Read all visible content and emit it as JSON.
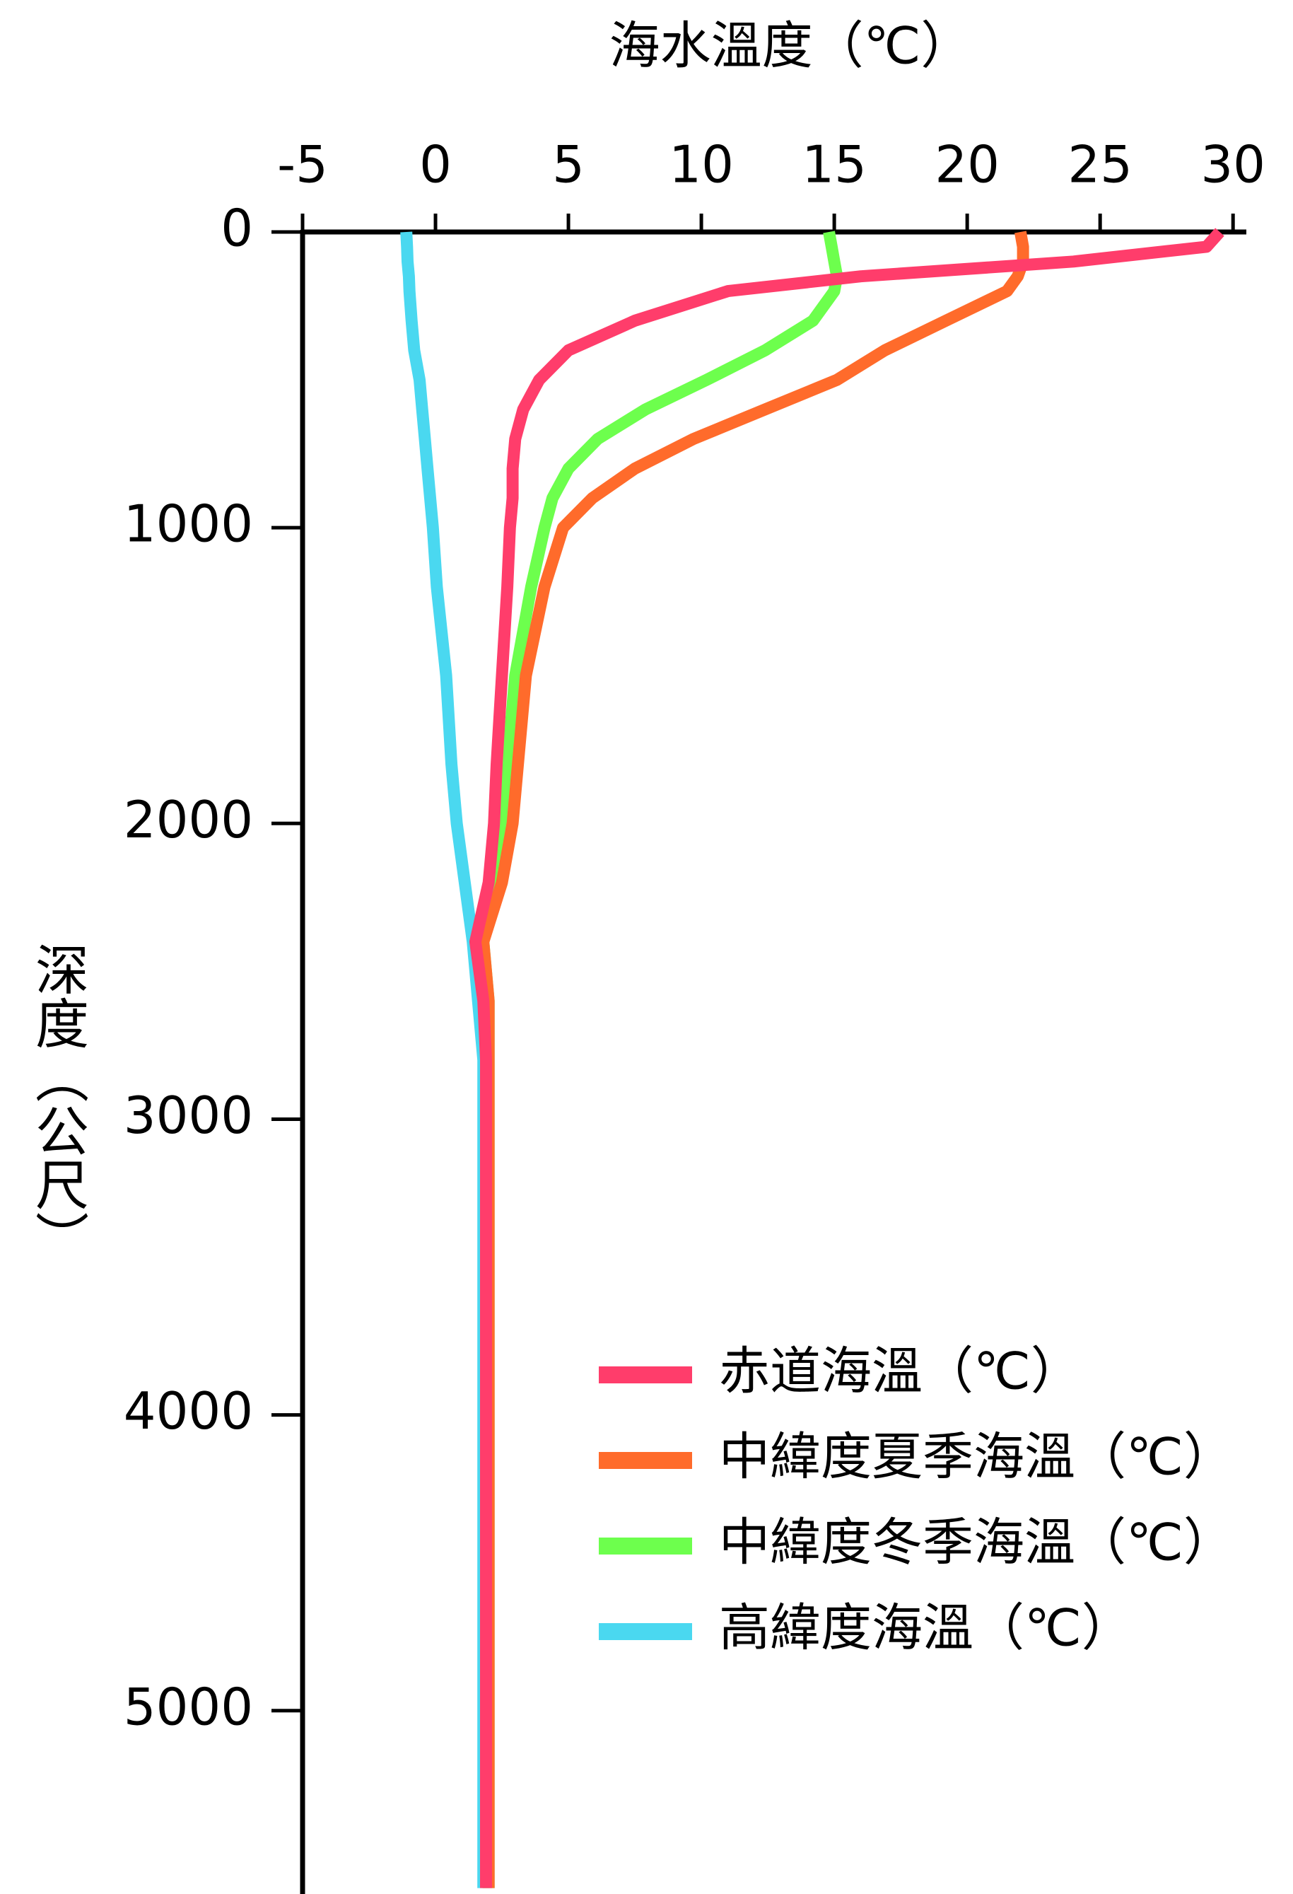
{
  "chart_data": {
    "type": "line",
    "title": "海水溫度（℃）",
    "y_label": "深度（公尺）",
    "y": [
      0,
      50,
      100,
      150,
      200,
      300,
      400,
      500,
      600,
      700,
      800,
      900,
      1000,
      1200,
      1500,
      1800,
      2000,
      2200,
      2400,
      2600,
      2800,
      3000,
      4000,
      5000,
      5600
    ],
    "series": [
      {
        "name": "赤道海溫（℃）",
        "color": "#ff3d6b",
        "values": [
          29.5,
          29,
          24,
          16,
          11,
          7.5,
          5,
          3.9,
          3.3,
          3.0,
          2.9,
          2.9,
          2.8,
          2.7,
          2.5,
          2.3,
          2.2,
          2.0,
          1.5,
          1.8,
          1.9,
          1.9,
          1.9,
          1.9,
          1.9
        ]
      },
      {
        "name": "中緯度夏季海溫（℃）",
        "color": "#ff6b2b",
        "values": [
          22,
          22.1,
          22.1,
          21.9,
          21.5,
          19.2,
          16.9,
          15.1,
          12.4,
          9.7,
          7.5,
          5.9,
          4.8,
          4.1,
          3.4,
          3.1,
          2.9,
          2.5,
          1.8,
          2.0,
          2.0,
          2.0,
          2.0,
          2.0,
          2.0
        ]
      },
      {
        "name": "中緯度冬季海溫（℃）",
        "color": "#6dff4d",
        "values": [
          14.8,
          14.9,
          15.0,
          15.1,
          15.0,
          14.2,
          12.4,
          10.2,
          7.9,
          6.1,
          5.0,
          4.4,
          4.1,
          3.6,
          3.0,
          2.7,
          2.5,
          2.3,
          1.8,
          2.0,
          2.0,
          2.0,
          2.0,
          2.0,
          2.0
        ]
      },
      {
        "name": "高緯度海溫（℃）",
        "color": "#4ad8f0",
        "values": [
          -1.1,
          -1.07,
          -1.05,
          -1.0,
          -0.98,
          -0.9,
          -0.8,
          -0.6,
          -0.5,
          -0.4,
          -0.3,
          -0.2,
          -0.1,
          0.05,
          0.4,
          0.6,
          0.8,
          1.1,
          1.4,
          1.6,
          1.8,
          1.8,
          1.8,
          1.8,
          1.8
        ]
      }
    ],
    "xlim": [
      -5,
      30.5
    ],
    "xticks": [
      -5,
      0,
      5,
      10,
      15,
      20,
      25,
      30
    ],
    "ylim": [
      0,
      5620
    ],
    "yticks": [
      0,
      1000,
      2000,
      3000,
      4000,
      5000
    ],
    "legend": "lower right"
  }
}
